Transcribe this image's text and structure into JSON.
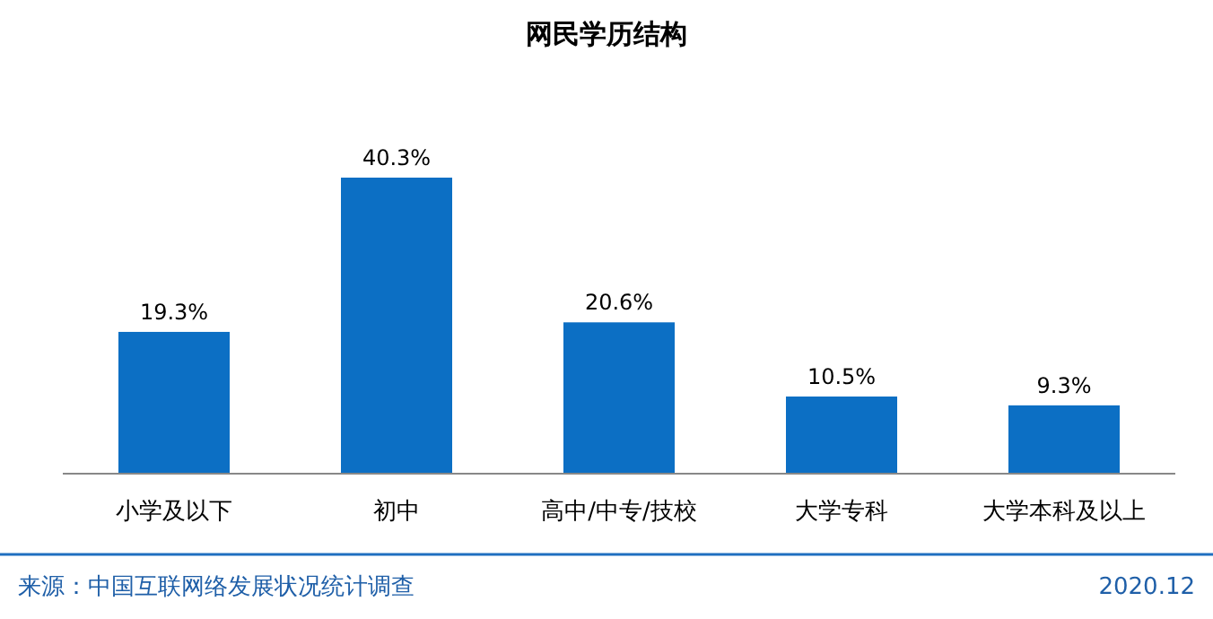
{
  "chart_data": {
    "type": "bar",
    "title": "网民学历结构",
    "categories": [
      "小学及以下",
      "初中",
      "高中/中专/技校",
      "大学专科",
      "大学本科及以上"
    ],
    "values": [
      19.3,
      40.3,
      20.6,
      10.5,
      9.3
    ],
    "value_labels": [
      "19.3%",
      "40.3%",
      "20.6%",
      "10.5%",
      "9.3%"
    ],
    "color": "#0c6fc4",
    "annotations": [
      "来源：中国互联网络发展状况统计调查",
      "2020.12"
    ]
  }
}
